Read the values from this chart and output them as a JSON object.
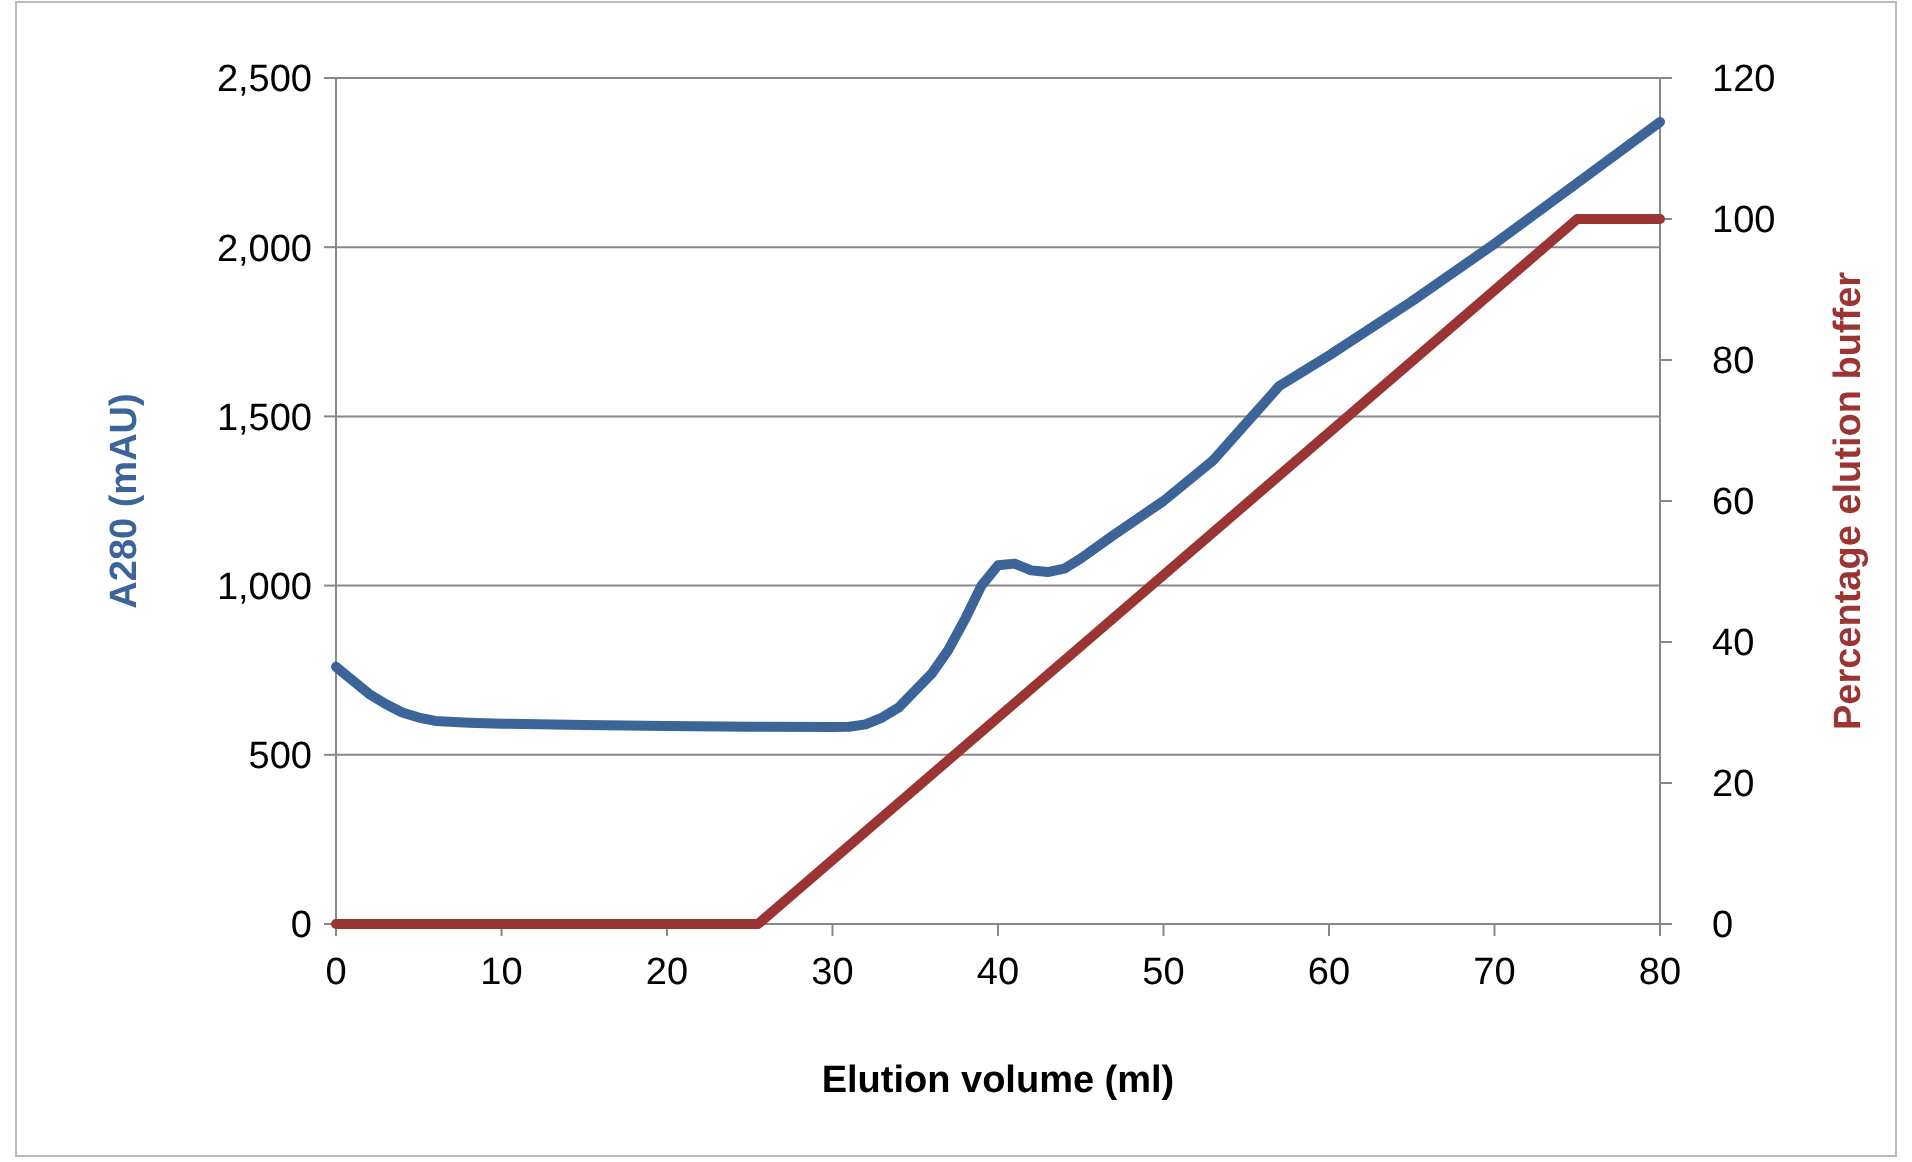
{
  "chart_data": {
    "type": "line",
    "xlabel": "Elution volume (ml)",
    "ylabel": "A280 (mAU)",
    "y2label": "Percentage elution buffer",
    "xlim": [
      0,
      80
    ],
    "xticks": [
      0,
      10,
      20,
      30,
      40,
      50,
      60,
      70,
      80
    ],
    "ylim": [
      0,
      2500
    ],
    "yticks": [
      {
        "value": 0,
        "label": "0"
      },
      {
        "value": 500,
        "label": "500"
      },
      {
        "value": 1000,
        "label": "1,000"
      },
      {
        "value": 1500,
        "label": "1,500"
      },
      {
        "value": 2000,
        "label": "2,000"
      },
      {
        "value": 2500,
        "label": "2,500"
      }
    ],
    "y2lim": [
      0,
      120
    ],
    "y2ticks": [
      0,
      20,
      40,
      60,
      80,
      100,
      120
    ],
    "grid": "y",
    "marker": "none",
    "line_style": "solid",
    "series": [
      {
        "color": "#3c6499",
        "x": [
          0,
          1,
          2,
          3,
          4,
          5,
          6,
          8,
          10,
          15,
          20,
          25,
          30,
          31,
          32,
          33,
          34,
          35,
          36,
          37,
          38,
          39,
          40,
          41,
          42,
          43,
          44,
          45,
          47,
          50,
          53,
          55,
          57,
          60,
          65,
          70,
          75,
          80
        ],
        "values": [
          760,
          720,
          680,
          650,
          625,
          610,
          600,
          595,
          592,
          588,
          585,
          583,
          582,
          583,
          590,
          610,
          640,
          690,
          740,
          810,
          900,
          1000,
          1060,
          1065,
          1045,
          1040,
          1050,
          1080,
          1150,
          1250,
          1370,
          1480,
          1590,
          1680,
          1840,
          2010,
          2190,
          2370
        ]
      },
      {
        "color": "#9b3534",
        "axis": "y2",
        "x": [
          0,
          25.5,
          75,
          80
        ],
        "values": [
          0,
          0,
          100,
          100
        ]
      }
    ]
  }
}
